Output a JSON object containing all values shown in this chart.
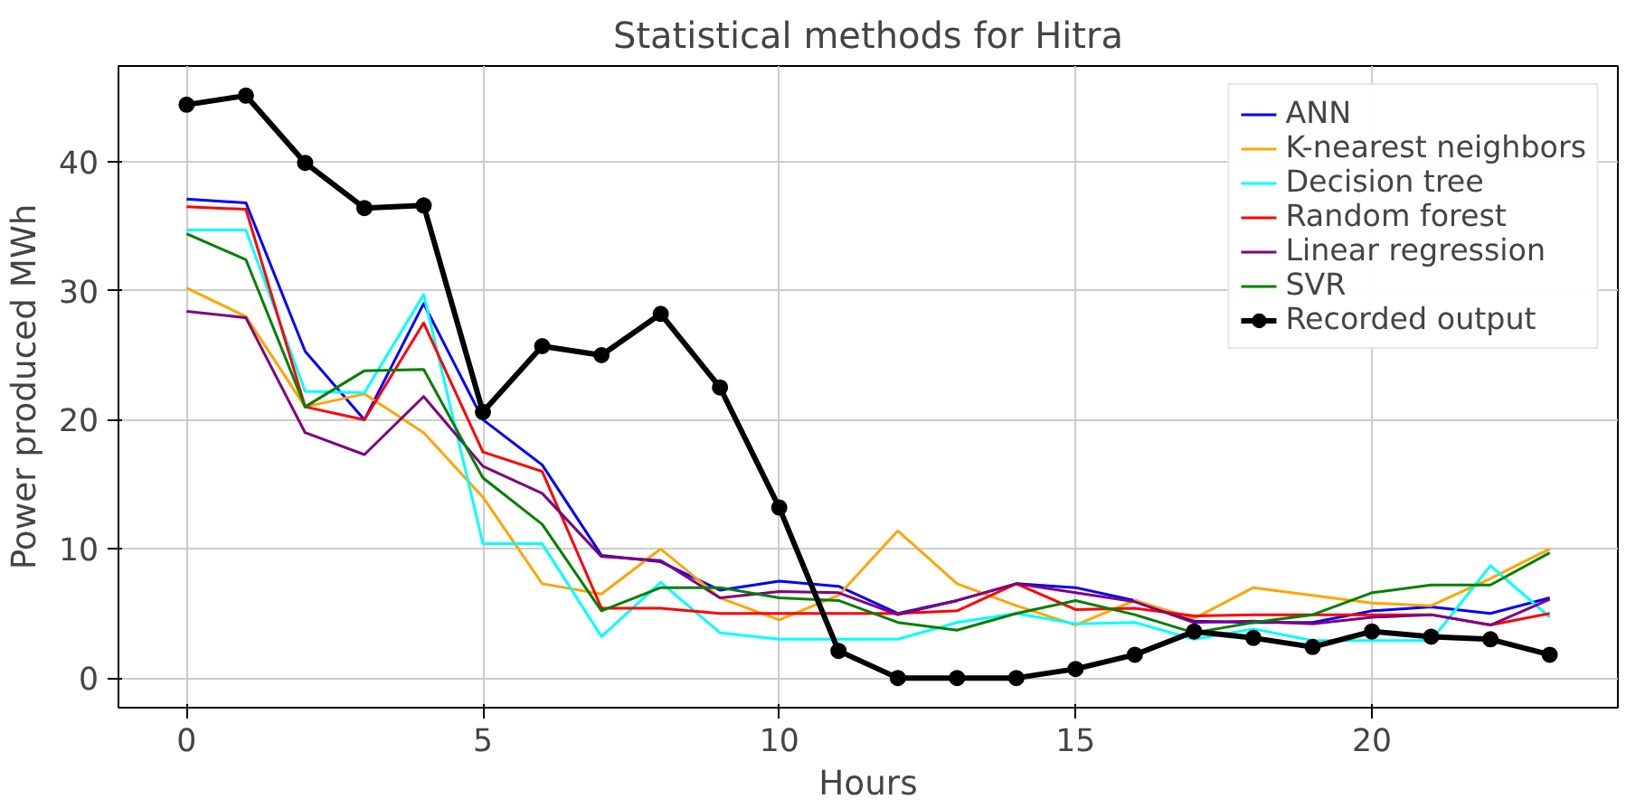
{
  "chart_data": {
    "type": "line",
    "title": "Statistical methods for Hitra",
    "xlabel": "Hours",
    "ylabel": "Power produced MWh",
    "x": [
      0,
      1,
      2,
      3,
      4,
      5,
      6,
      7,
      8,
      9,
      10,
      11,
      12,
      13,
      14,
      15,
      16,
      17,
      18,
      19,
      20,
      21,
      22,
      23
    ],
    "xlim": [
      -1.15,
      24.15
    ],
    "ylim": [
      -2.3,
      47.4
    ],
    "xticks": [
      0,
      5,
      10,
      15,
      20
    ],
    "yticks": [
      0,
      10,
      20,
      30,
      40
    ],
    "grid": true,
    "legend": "top right",
    "marker": "none",
    "series": [
      {
        "name": "ANN",
        "color": "#0000ff",
        "values": [
          37.1,
          36.8,
          25.3,
          20,
          29,
          20,
          16.5,
          9.5,
          9,
          6.8,
          7.5,
          7.1,
          5,
          6,
          7.3,
          7,
          6,
          4.4,
          4.3,
          4.3,
          5.2,
          5.5,
          5,
          6.2
        ]
      },
      {
        "name": "K-nearest neighbors",
        "color": "#ffa500",
        "values": [
          30.2,
          28,
          21,
          22,
          19,
          14,
          7.3,
          6.5,
          10,
          6.2,
          4.5,
          6.4,
          11.4,
          7.3,
          5.6,
          4.1,
          6,
          4.6,
          7,
          6.4,
          5.8,
          5.6,
          7.7,
          10
        ]
      },
      {
        "name": "Decision tree",
        "color": "#00ffff",
        "values": [
          34.7,
          34.7,
          22.2,
          22.1,
          29.7,
          10.4,
          10.4,
          3.2,
          7.4,
          3.5,
          3,
          3,
          3,
          4.3,
          5,
          4.2,
          4.3,
          3,
          3.8,
          2.9,
          2.9,
          2.9,
          8.7,
          4.7
        ]
      },
      {
        "name": "Random forest",
        "color": "#ff0000",
        "values": [
          36.5,
          36.3,
          21,
          20,
          27.5,
          17.5,
          16,
          5.4,
          5.4,
          5,
          5,
          5,
          5,
          5.2,
          7.3,
          5.3,
          5.4,
          4.8,
          4.9,
          4.9,
          4.9,
          4.9,
          4.1,
          5
        ]
      },
      {
        "name": "Linear regression",
        "color": "#800080",
        "values": [
          28.4,
          27.9,
          19,
          17.3,
          21.8,
          16.4,
          14.3,
          9.4,
          9.1,
          6.2,
          6.7,
          6.6,
          4.9,
          6,
          7.3,
          6.6,
          5.9,
          4.3,
          4.4,
          4.2,
          4.7,
          4.9,
          4.1,
          6.1
        ]
      },
      {
        "name": "SVR",
        "color": "#008000",
        "values": [
          34.4,
          32.4,
          21,
          23.8,
          23.9,
          15.5,
          11.9,
          5.2,
          7,
          7,
          6.2,
          6,
          4.3,
          3.7,
          5,
          6,
          4.9,
          3.5,
          4.3,
          4.9,
          6.6,
          7.2,
          7.2,
          9.7
        ]
      },
      {
        "name": "Recorded output",
        "color": "#000000",
        "marker": "circle",
        "values": [
          44.4,
          45.1,
          39.9,
          36.4,
          36.6,
          20.6,
          25.7,
          25,
          28.2,
          22.5,
          13.2,
          2.1,
          0,
          0,
          0,
          0.7,
          1.8,
          3.6,
          3.1,
          2.4,
          3.6,
          3.2,
          3,
          1.8
        ]
      }
    ]
  }
}
